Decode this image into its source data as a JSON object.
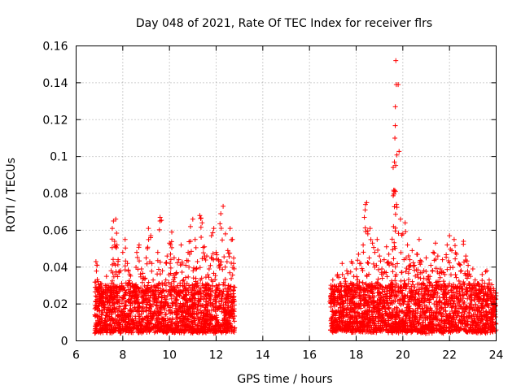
{
  "chart_data": {
    "type": "scatter",
    "title": "Day 048 of 2021, Rate Of TEC Index for receiver flrs",
    "xlabel": "GPS time / hours",
    "ylabel": "ROTI / TECUs",
    "xlim": [
      6,
      24
    ],
    "ylim": [
      0,
      0.16
    ],
    "x_ticks": [
      "6",
      "8",
      "10",
      "12",
      "14",
      "16",
      "18",
      "20",
      "22",
      "24"
    ],
    "y_ticks": [
      "0",
      "0.02",
      "0.04",
      "0.06",
      "0.08",
      "0.1",
      "0.12",
      "0.14",
      "0.16"
    ],
    "grid": true,
    "marker": "+",
    "color": "#ff0000",
    "series": [
      {
        "name": "ROTI",
        "x": [
          6.85,
          6.9,
          6.95,
          7.0,
          7.05,
          7.1,
          7.15,
          7.2,
          7.3,
          7.4,
          7.5,
          7.55,
          7.6,
          7.65,
          7.7,
          7.75,
          7.8,
          7.9,
          8.0,
          8.1,
          8.2,
          8.3,
          8.4,
          8.5,
          8.6,
          8.7,
          8.8,
          8.9,
          9.0,
          9.1,
          9.2,
          9.3,
          9.4,
          9.5,
          9.6,
          9.7,
          9.8,
          9.9,
          10.0,
          10.1,
          10.2,
          10.3,
          10.4,
          10.5,
          10.6,
          10.7,
          10.8,
          10.9,
          11.0,
          11.1,
          11.2,
          11.3,
          11.4,
          11.5,
          11.6,
          11.7,
          11.8,
          11.9,
          12.0,
          12.1,
          12.2,
          12.3,
          12.4,
          12.5,
          12.6,
          12.7,
          12.75,
          16.9,
          17.0,
          17.1,
          17.2,
          17.3,
          17.4,
          17.5,
          17.6,
          17.7,
          17.8,
          17.9,
          18.0,
          18.1,
          18.2,
          18.3,
          18.4,
          18.45,
          18.5,
          18.6,
          18.7,
          18.8,
          18.9,
          19.0,
          19.1,
          19.2,
          19.3,
          19.4,
          19.5,
          19.6,
          19.62,
          19.64,
          19.66,
          19.68,
          19.7,
          19.8,
          19.9,
          20.0,
          20.1,
          20.2,
          20.3,
          20.4,
          20.5,
          20.6,
          20.7,
          20.8,
          20.9,
          21.0,
          21.1,
          21.2,
          21.3,
          21.4,
          21.5,
          21.6,
          21.7,
          21.8,
          21.9,
          22.0,
          22.1,
          22.2,
          22.3,
          22.4,
          22.5,
          22.6,
          22.7,
          22.8,
          22.9,
          23.0,
          23.1,
          23.2,
          23.3,
          23.4,
          23.5,
          23.6,
          23.7,
          23.8,
          23.9,
          23.95
        ],
        "y": [
          0.043,
          0.041,
          0.028,
          0.024,
          0.031,
          0.022,
          0.027,
          0.018,
          0.035,
          0.029,
          0.038,
          0.061,
          0.065,
          0.054,
          0.066,
          0.052,
          0.044,
          0.038,
          0.048,
          0.055,
          0.042,
          0.036,
          0.031,
          0.027,
          0.048,
          0.052,
          0.039,
          0.034,
          0.045,
          0.061,
          0.057,
          0.033,
          0.026,
          0.048,
          0.067,
          0.038,
          0.031,
          0.046,
          0.053,
          0.059,
          0.045,
          0.037,
          0.044,
          0.052,
          0.033,
          0.041,
          0.048,
          0.062,
          0.066,
          0.055,
          0.043,
          0.068,
          0.064,
          0.051,
          0.046,
          0.039,
          0.057,
          0.061,
          0.048,
          0.044,
          0.069,
          0.073,
          0.058,
          0.049,
          0.061,
          0.055,
          0.042,
          0.024,
          0.033,
          0.028,
          0.036,
          0.031,
          0.042,
          0.034,
          0.038,
          0.029,
          0.043,
          0.035,
          0.039,
          0.047,
          0.042,
          0.052,
          0.074,
          0.075,
          0.058,
          0.061,
          0.053,
          0.048,
          0.055,
          0.046,
          0.039,
          0.044,
          0.051,
          0.047,
          0.042,
          0.062,
          0.081,
          0.097,
          0.11,
          0.127,
          0.152,
          0.139,
          0.066,
          0.058,
          0.064,
          0.052,
          0.044,
          0.049,
          0.041,
          0.047,
          0.055,
          0.043,
          0.038,
          0.045,
          0.035,
          0.041,
          0.048,
          0.053,
          0.046,
          0.039,
          0.044,
          0.036,
          0.052,
          0.057,
          0.049,
          0.055,
          0.047,
          0.042,
          0.038,
          0.054,
          0.046,
          0.041,
          0.035,
          0.039,
          0.033,
          0.031,
          0.028,
          0.036,
          0.029,
          0.038,
          0.033,
          0.025,
          0.019,
          0.016
        ]
      }
    ],
    "note": "Dense band of points with ROTI between 0.003 and 0.03 TECU/min covers 6.8-12.8 h and 16.9-24 h"
  }
}
